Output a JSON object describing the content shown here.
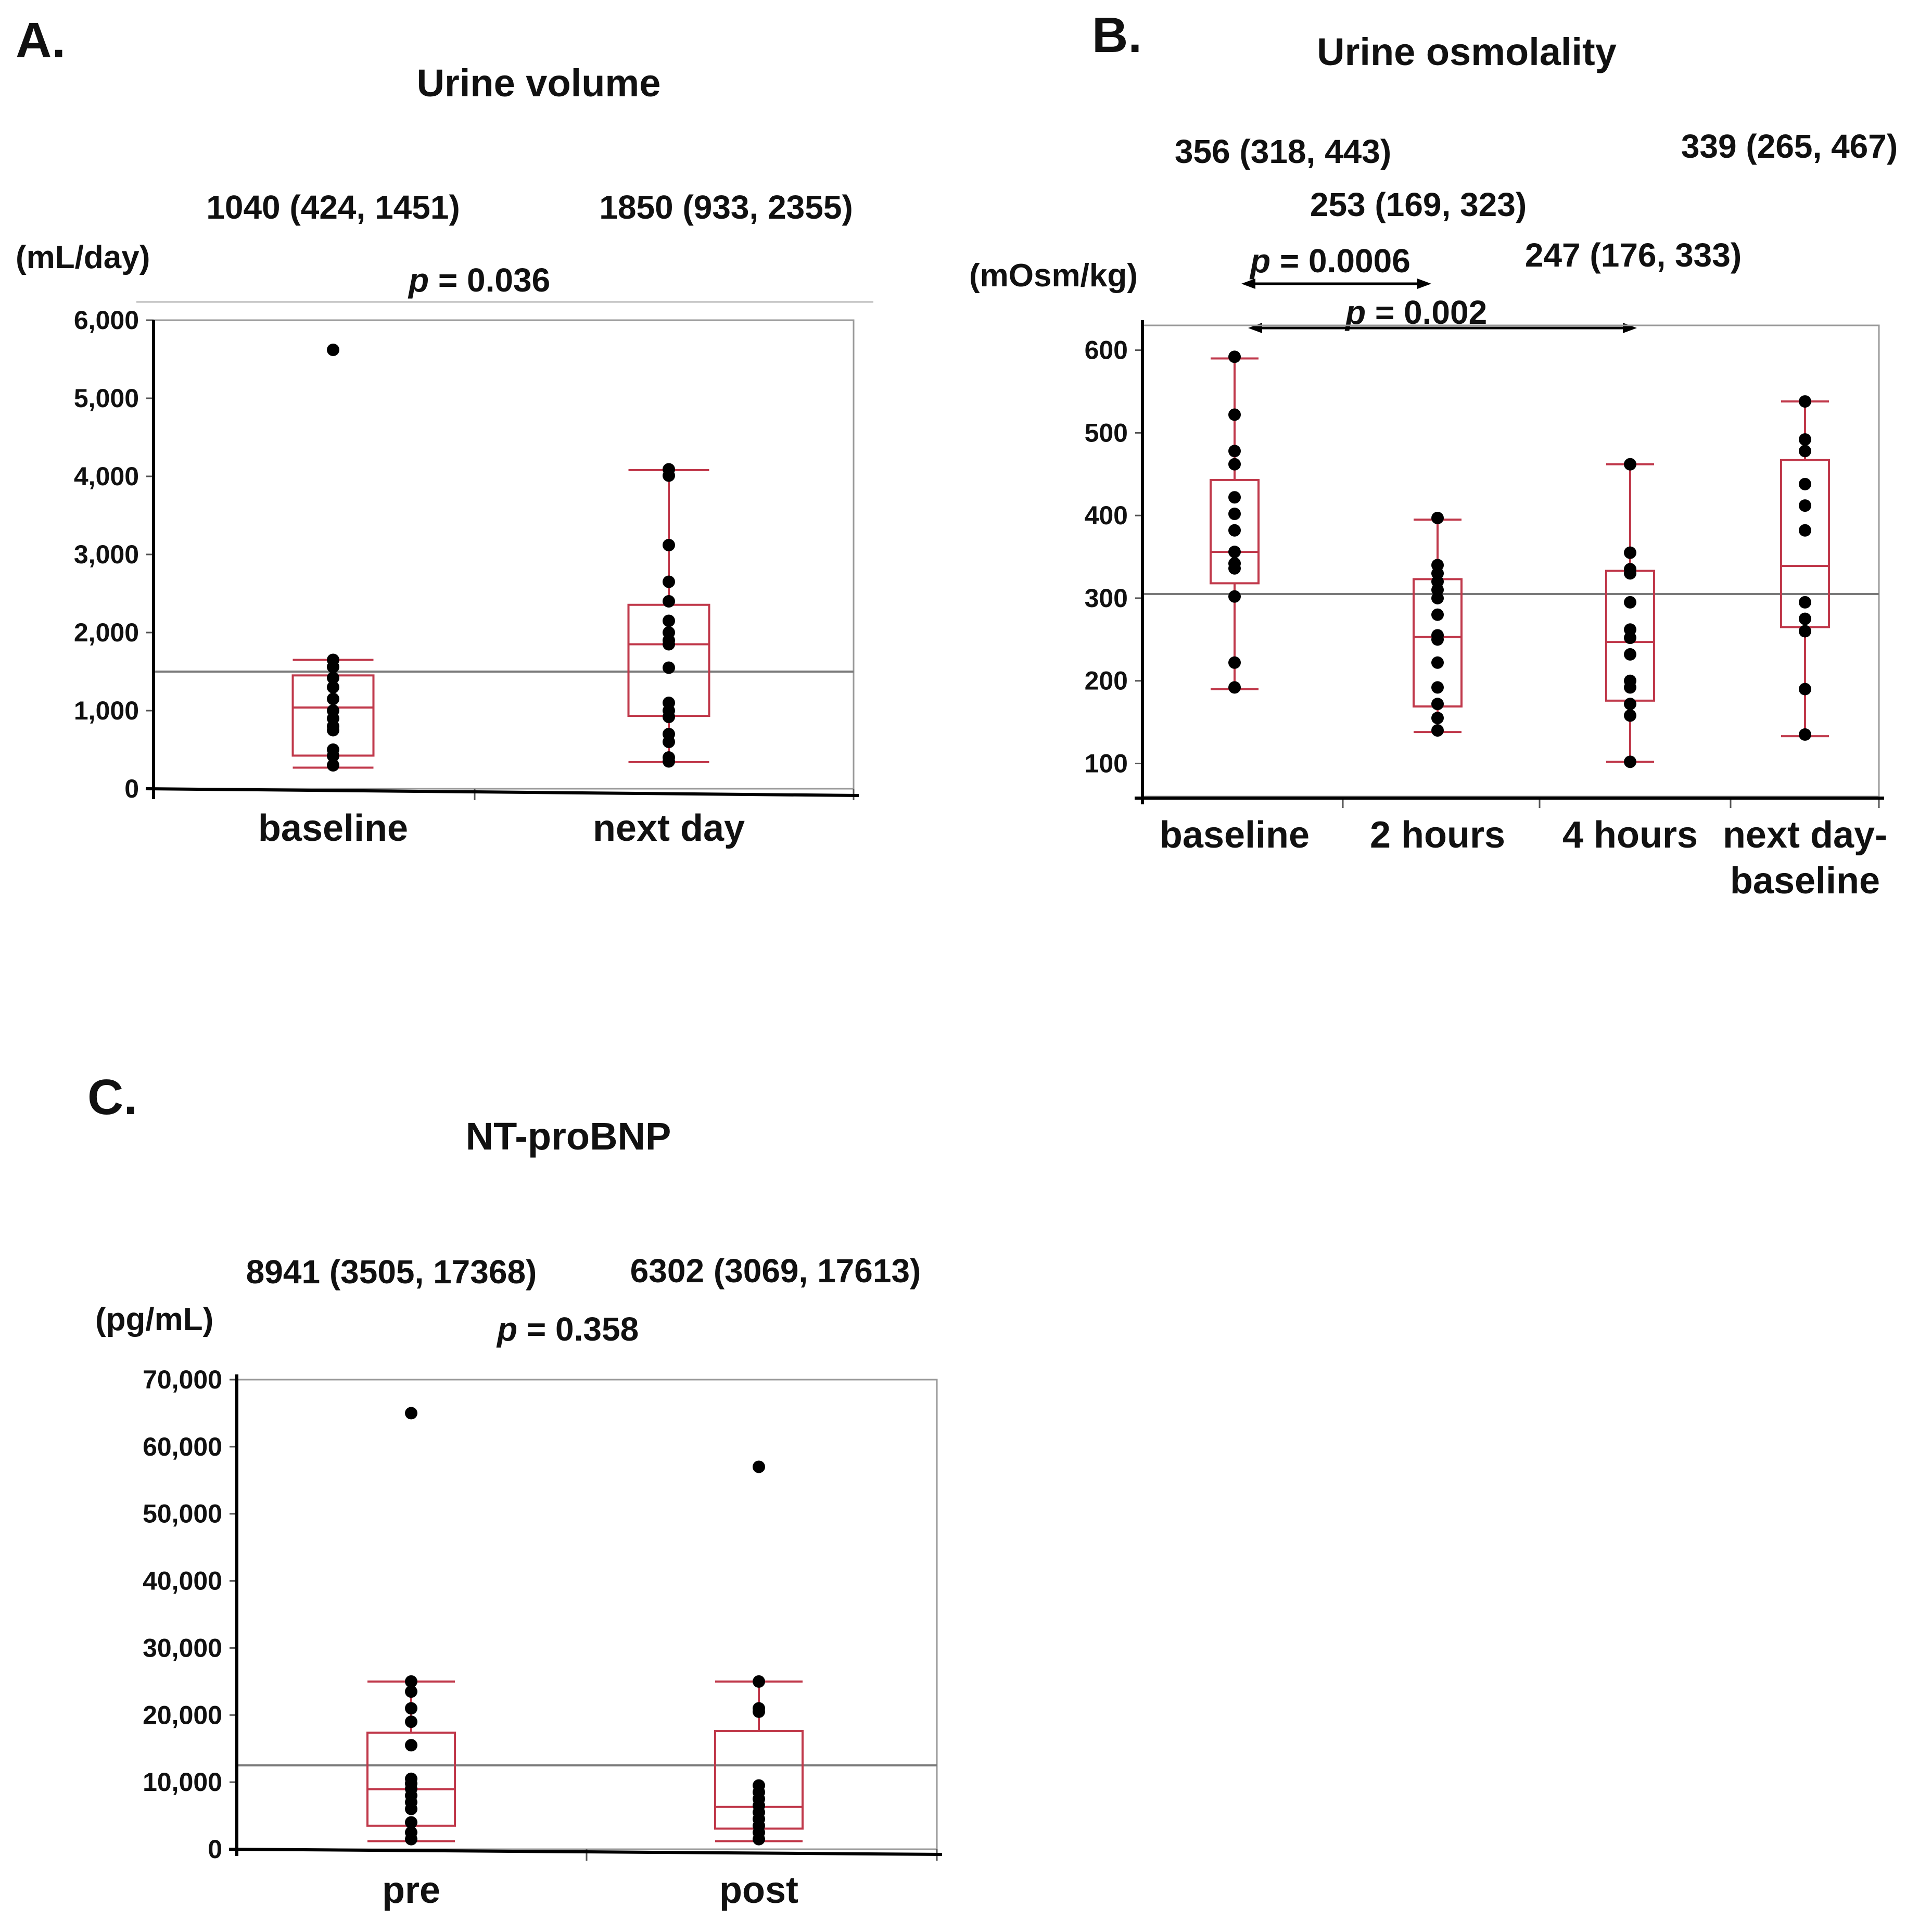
{
  "colors": {
    "box": "#c0394b",
    "points": "#000000",
    "reference_line": "#7a7a7a",
    "frame": "#9a9a9a"
  },
  "panels": {
    "A": {
      "letter": "A.",
      "title": "Urine volume",
      "unit": "(mL/day)",
      "stats": [
        "1040 (424, 1451)",
        "1850 (933, 2355)"
      ],
      "p_prefix": "p",
      "p_value": " = 0.036"
    },
    "B": {
      "letter": "B.",
      "title": "Urine osmolality",
      "unit": "(mOsm/kg)",
      "stats": [
        "356 (318, 443)",
        "253 (169, 323)",
        "247 (176, 333)",
        "339 (265, 467)"
      ],
      "p1_prefix": "p",
      "p1_value": " = 0.0006",
      "p2_prefix": "p",
      "p2_value": " = 0.002"
    },
    "C": {
      "letter": "C.",
      "title": "NT-proBNP",
      "unit": "(pg/mL)",
      "stats": [
        "8941 (3505, 17368)",
        "6302 (3069, 17613)"
      ],
      "p_prefix": "p",
      "p_value": " = 0.358"
    }
  },
  "chart_data": [
    {
      "type": "box",
      "title": "Urine volume",
      "ylabel": "(mL/day)",
      "ylim": [
        0,
        6000
      ],
      "yticks": [
        0,
        1000,
        2000,
        3000,
        4000,
        5000,
        6000
      ],
      "ytick_labels": [
        "0",
        "1,000",
        "2,000",
        "3,000",
        "4,000",
        "5,000",
        "6,000"
      ],
      "categories": [
        "baseline",
        "next day"
      ],
      "overall_mean_line": 1500,
      "boxes": [
        {
          "q1": 424,
          "median": 1040,
          "q3": 1451,
          "whisker_low": 270,
          "whisker_high": 1650
        },
        {
          "q1": 933,
          "median": 1850,
          "q3": 2355,
          "whisker_low": 340,
          "whisker_high": 4080
        }
      ],
      "points": [
        [
          5620,
          1650,
          1560,
          1420,
          1300,
          1150,
          1000,
          900,
          800,
          750,
          500,
          420,
          300
        ],
        [
          4090,
          4010,
          3120,
          2650,
          2400,
          2150,
          2000,
          1900,
          1850,
          1550,
          1100,
          1000,
          920,
          700,
          600,
          400,
          350
        ]
      ],
      "annotations": {
        "stats": [
          "1040 (424, 1451)",
          "1850 (933, 2355)"
        ],
        "p_value": "p = 0.036"
      }
    },
    {
      "type": "box",
      "title": "Urine osmolality",
      "ylabel": "(mOsm/kg)",
      "ylim": [
        60,
        630
      ],
      "yticks": [
        100,
        200,
        300,
        400,
        500,
        600
      ],
      "ytick_labels": [
        "100",
        "200",
        "300",
        "400",
        "500",
        "600"
      ],
      "categories": [
        "baseline",
        "2 hours",
        "4 hours",
        "next day-\nbaseline"
      ],
      "overall_mean_line": 305,
      "boxes": [
        {
          "q1": 318,
          "median": 356,
          "q3": 443,
          "whisker_low": 190,
          "whisker_high": 590
        },
        {
          "q1": 169,
          "median": 253,
          "q3": 323,
          "whisker_low": 138,
          "whisker_high": 395
        },
        {
          "q1": 176,
          "median": 247,
          "q3": 333,
          "whisker_low": 102,
          "whisker_high": 462
        },
        {
          "q1": 265,
          "median": 339,
          "q3": 467,
          "whisker_low": 133,
          "whisker_high": 538
        }
      ],
      "points": [
        [
          592,
          522,
          478,
          462,
          422,
          402,
          382,
          356,
          342,
          336,
          302,
          222,
          192
        ],
        [
          397,
          340,
          330,
          320,
          310,
          300,
          280,
          255,
          250,
          222,
          192,
          172,
          155,
          140
        ],
        [
          462,
          355,
          335,
          330,
          295,
          262,
          252,
          232,
          200,
          192,
          172,
          158,
          102
        ],
        [
          538,
          492,
          478,
          438,
          412,
          382,
          295,
          275,
          260,
          190,
          135
        ]
      ],
      "annotations": {
        "stats": [
          "356 (318, 443)",
          "253 (169, 323)",
          "247 (176, 333)",
          "339 (265, 467)"
        ],
        "p_values": [
          "p = 0.0006",
          "p = 0.002"
        ]
      }
    },
    {
      "type": "box",
      "title": "NT-proBNP",
      "ylabel": "(pg/mL)",
      "ylim": [
        0,
        70000
      ],
      "yticks": [
        0,
        10000,
        20000,
        30000,
        40000,
        50000,
        60000,
        70000
      ],
      "ytick_labels": [
        "0",
        "10,000",
        "20,000",
        "30,000",
        "40,000",
        "50,000",
        "60,000",
        "70,000"
      ],
      "categories": [
        "pre",
        "post"
      ],
      "overall_mean_line": 12500,
      "boxes": [
        {
          "q1": 3505,
          "median": 8941,
          "q3": 17368,
          "whisker_low": 1200,
          "whisker_high": 25000
        },
        {
          "q1": 3069,
          "median": 6302,
          "q3": 17613,
          "whisker_low": 1200,
          "whisker_high": 25000
        }
      ],
      "points": [
        [
          65000,
          25000,
          23500,
          21000,
          19000,
          15500,
          10500,
          9800,
          9000,
          8000,
          7000,
          6000,
          4000,
          2500,
          1500
        ],
        [
          57000,
          25000,
          21000,
          20500,
          9500,
          8500,
          7500,
          6500,
          5500,
          4500,
          3500,
          2500,
          1500
        ]
      ],
      "annotations": {
        "stats": [
          "8941 (3505, 17368)",
          "6302 (3069, 17613)"
        ],
        "p_value": "p = 0.358"
      }
    }
  ]
}
